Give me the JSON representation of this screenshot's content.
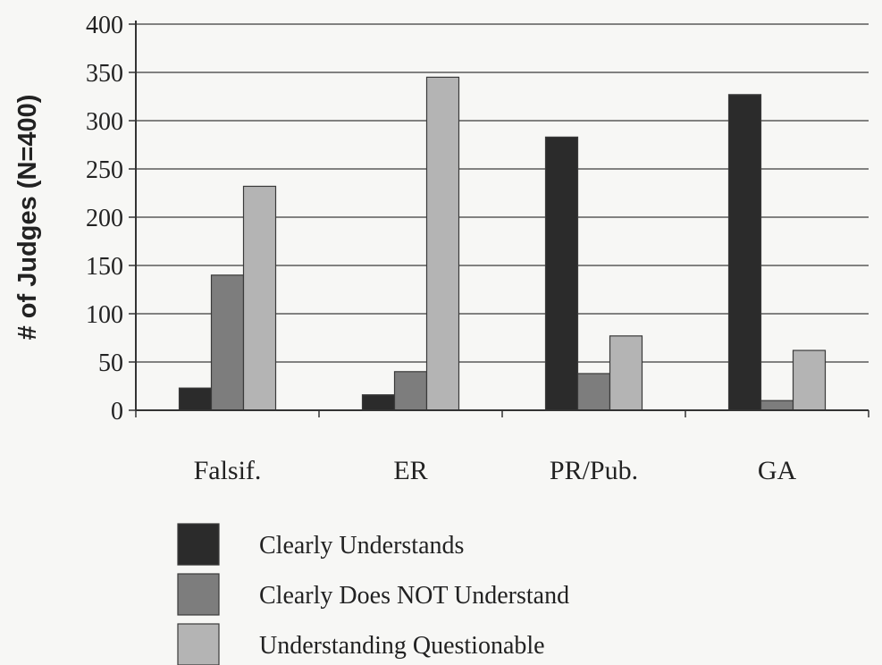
{
  "chart_data": {
    "type": "bar",
    "title": "",
    "xlabel": "",
    "ylabel": "# of Judges (N=400)",
    "ylim": [
      0,
      400
    ],
    "yticks": [
      0,
      50,
      100,
      150,
      200,
      250,
      300,
      350,
      400
    ],
    "grid": true,
    "legend_position": "bottom",
    "categories": [
      "Falsif.",
      "ER",
      "PR/Pub.",
      "GA"
    ],
    "series": [
      {
        "name": "Clearly Understands",
        "color": "#2b2b2b",
        "values": [
          23,
          16,
          283,
          327
        ]
      },
      {
        "name": "Clearly Does NOT Understand",
        "color": "#7d7d7d",
        "values": [
          140,
          40,
          38,
          10
        ]
      },
      {
        "name": "Understanding Questionable",
        "color": "#b4b4b4",
        "values": [
          232,
          345,
          77,
          62
        ]
      }
    ]
  }
}
